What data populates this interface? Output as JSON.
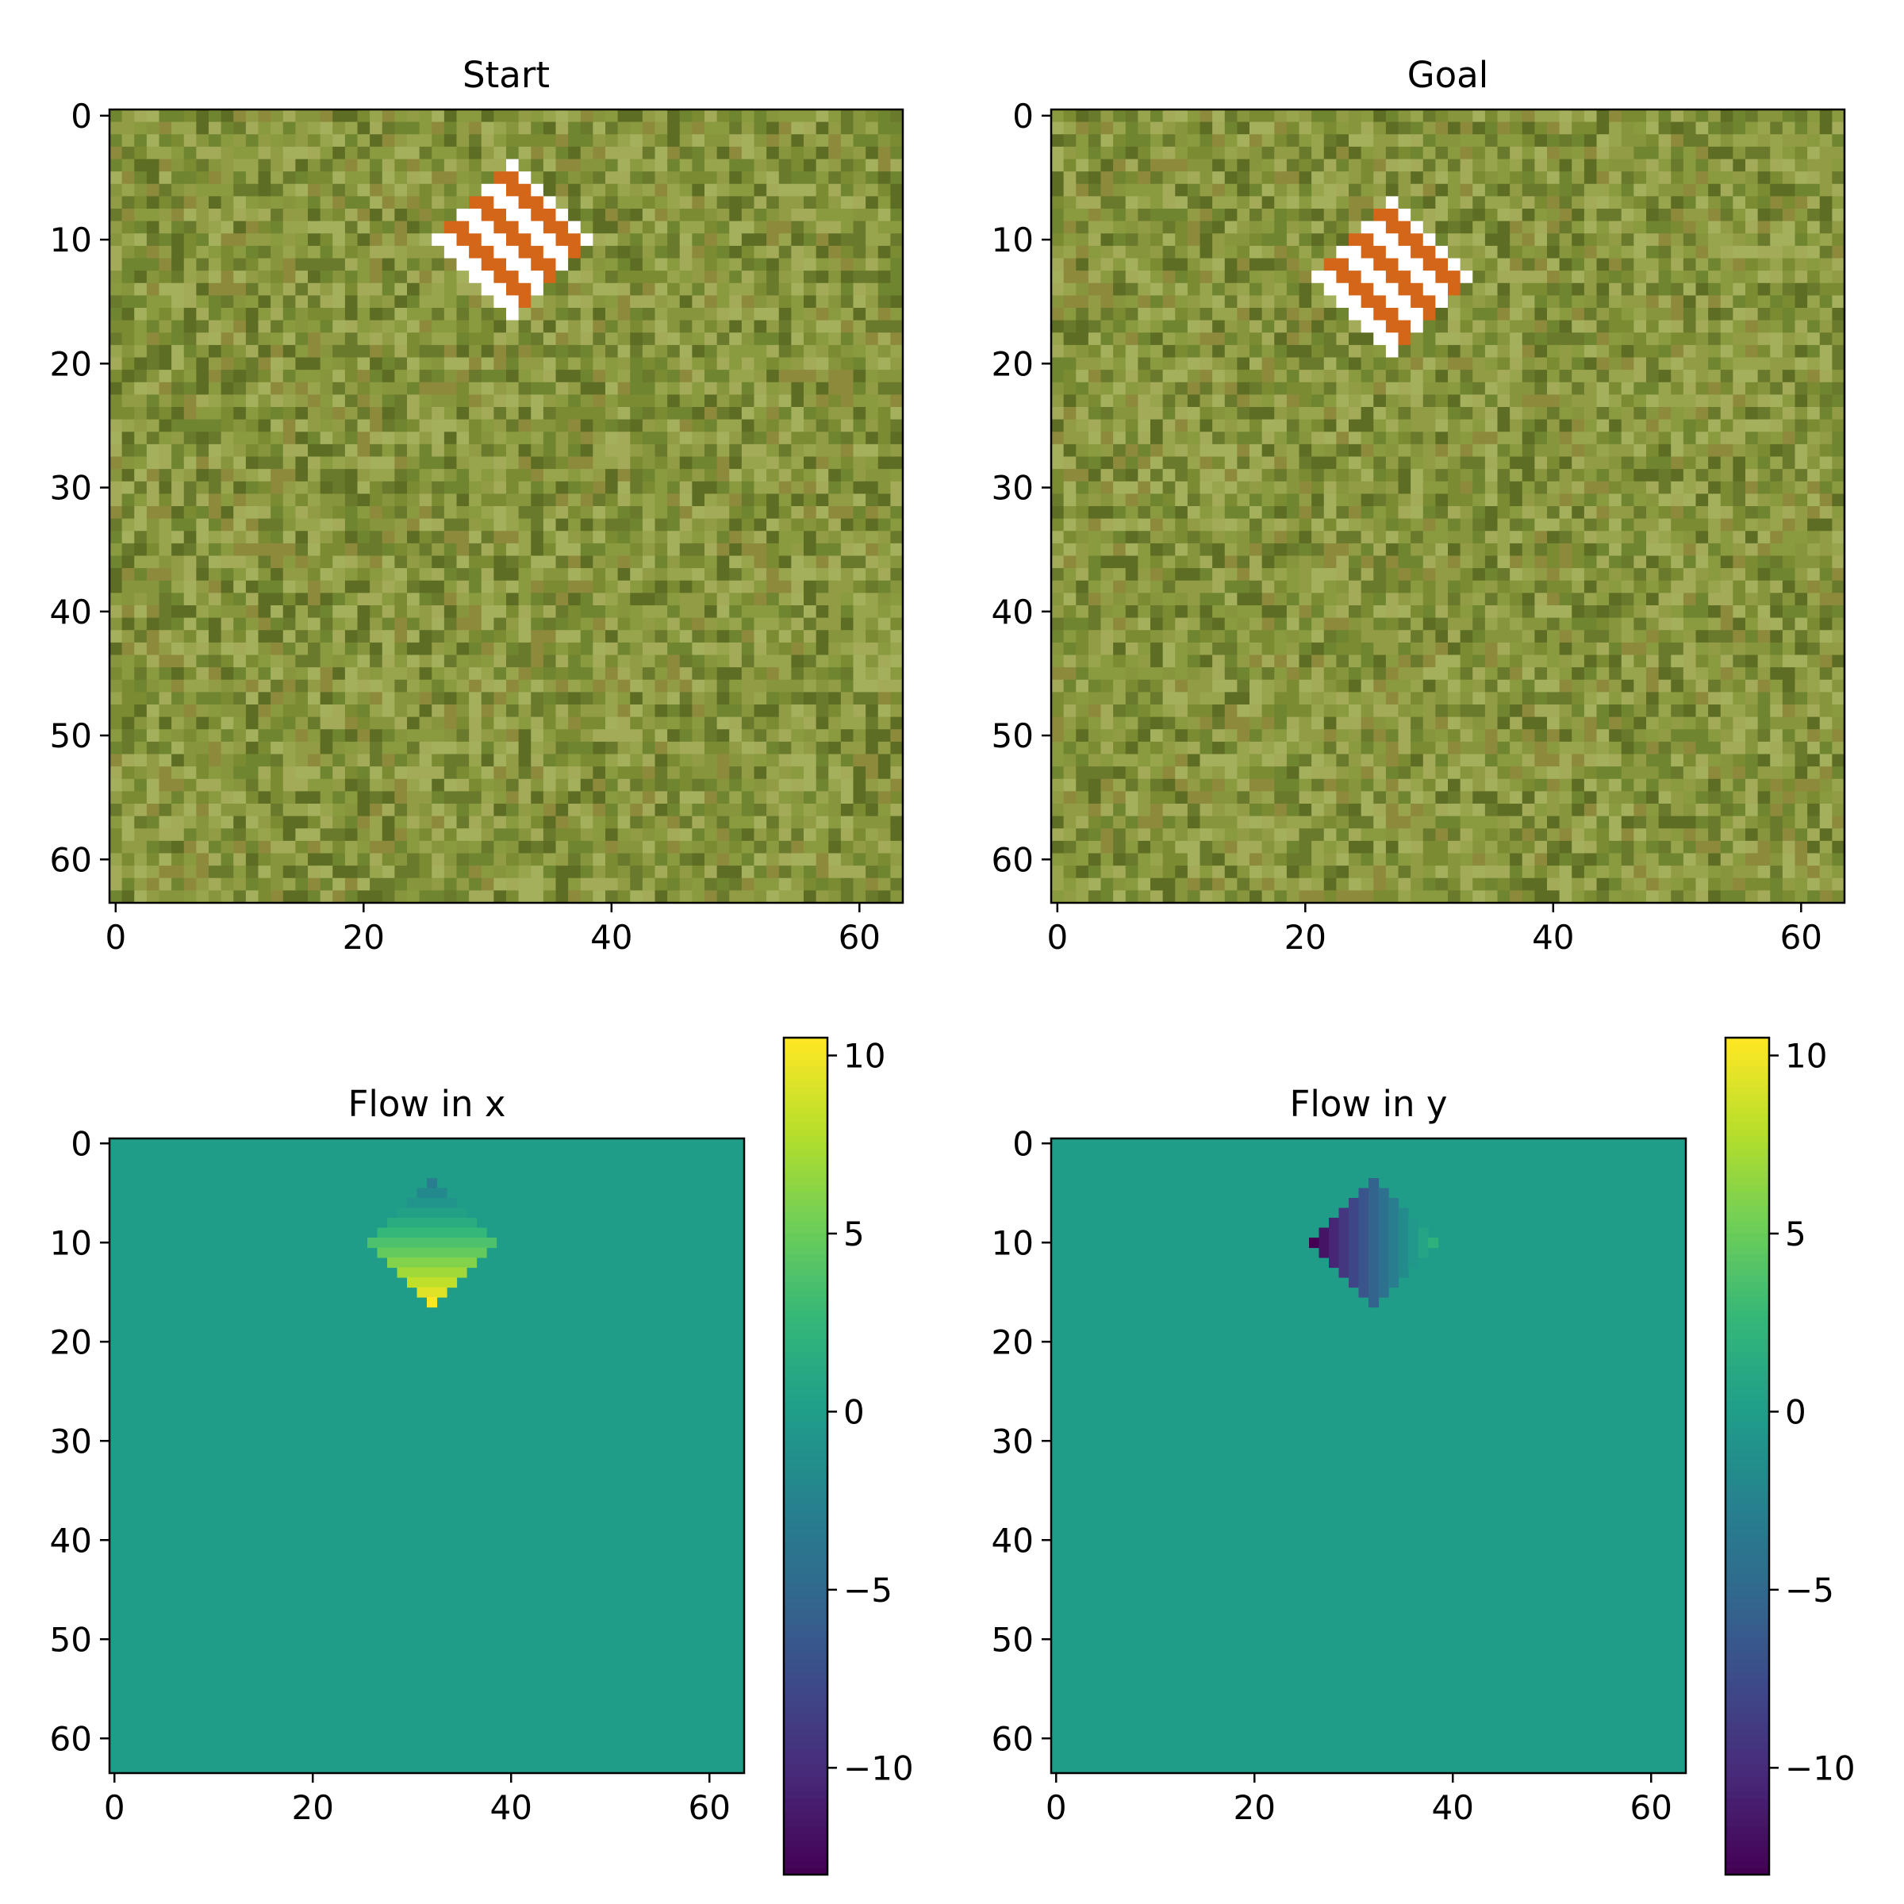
{
  "figure": {
    "grid": false,
    "legend": "none"
  },
  "colors": {
    "grass": [
      "#6a7a2c",
      "#7b8b32",
      "#87953c",
      "#919c44",
      "#8a9a3e",
      "#99a54c",
      "#a3ab58",
      "#6f8530",
      "#8e8a3c",
      "#5d6e24",
      "#a5b05c"
    ],
    "object_orange": "#d4661a",
    "object_white": "#ffffff",
    "viridis": [
      "#440154",
      "#482878",
      "#3e4989",
      "#31688e",
      "#26828e",
      "#1f9e89",
      "#35b779",
      "#6ece58",
      "#b5de2b",
      "#fde725"
    ]
  },
  "chart_data": [
    {
      "id": "start",
      "type": "heatmap",
      "title": "Start",
      "grid_size": [
        64,
        64
      ],
      "xlim": [
        -0.5,
        63.5
      ],
      "ylim": [
        63.5,
        -0.5
      ],
      "xticks": [
        "0",
        "20",
        "40",
        "60"
      ],
      "yticks": [
        "0",
        "10",
        "20",
        "30",
        "40",
        "50",
        "60"
      ],
      "image": "grass texture with striped orange/white rotated square",
      "object_center": [
        32,
        10
      ]
    },
    {
      "id": "goal",
      "type": "heatmap",
      "title": "Goal",
      "grid_size": [
        64,
        64
      ],
      "xlim": [
        -0.5,
        63.5
      ],
      "ylim": [
        63.5,
        -0.5
      ],
      "xticks": [
        "0",
        "20",
        "40",
        "60"
      ],
      "yticks": [
        "0",
        "10",
        "20",
        "30",
        "40",
        "50",
        "60"
      ],
      "image": "grass texture with striped orange/white rotated square",
      "object_center": [
        27,
        13
      ]
    },
    {
      "id": "flow_x",
      "type": "heatmap",
      "title": "Flow in x",
      "grid_size": [
        64,
        64
      ],
      "xlim": [
        -0.5,
        63.5
      ],
      "ylim": [
        63.5,
        -0.5
      ],
      "xticks": [
        "0",
        "20",
        "40",
        "60"
      ],
      "yticks": [
        "0",
        "10",
        "20",
        "30",
        "40",
        "50",
        "60"
      ],
      "background_value": 0,
      "region": {
        "center": [
          32,
          10
        ],
        "radius": 6,
        "rows": [
          4,
          16
        ]
      },
      "value_range_in_region": [
        -3,
        10.5
      ],
      "gradient": "increases with row",
      "colorbar": {
        "range": [
          -13,
          10.5
        ],
        "ticks": [
          "10",
          "5",
          "0",
          "−5",
          "−10"
        ]
      }
    },
    {
      "id": "flow_y",
      "type": "heatmap",
      "title": "Flow in y",
      "grid_size": [
        64,
        64
      ],
      "xlim": [
        -0.5,
        63.5
      ],
      "ylim": [
        63.5,
        -0.5
      ],
      "xticks": [
        "0",
        "20",
        "40",
        "60"
      ],
      "yticks": [
        "0",
        "10",
        "20",
        "30",
        "40",
        "50",
        "60"
      ],
      "background_value": 0,
      "region": {
        "center": [
          32,
          10
        ],
        "radius": 6,
        "cols": [
          26,
          38
        ]
      },
      "value_range_in_region": [
        -13,
        2
      ],
      "gradient": "increases with column",
      "colorbar": {
        "range": [
          -13,
          10.5
        ],
        "ticks": [
          "10",
          "5",
          "0",
          "−5",
          "−10"
        ]
      }
    }
  ]
}
